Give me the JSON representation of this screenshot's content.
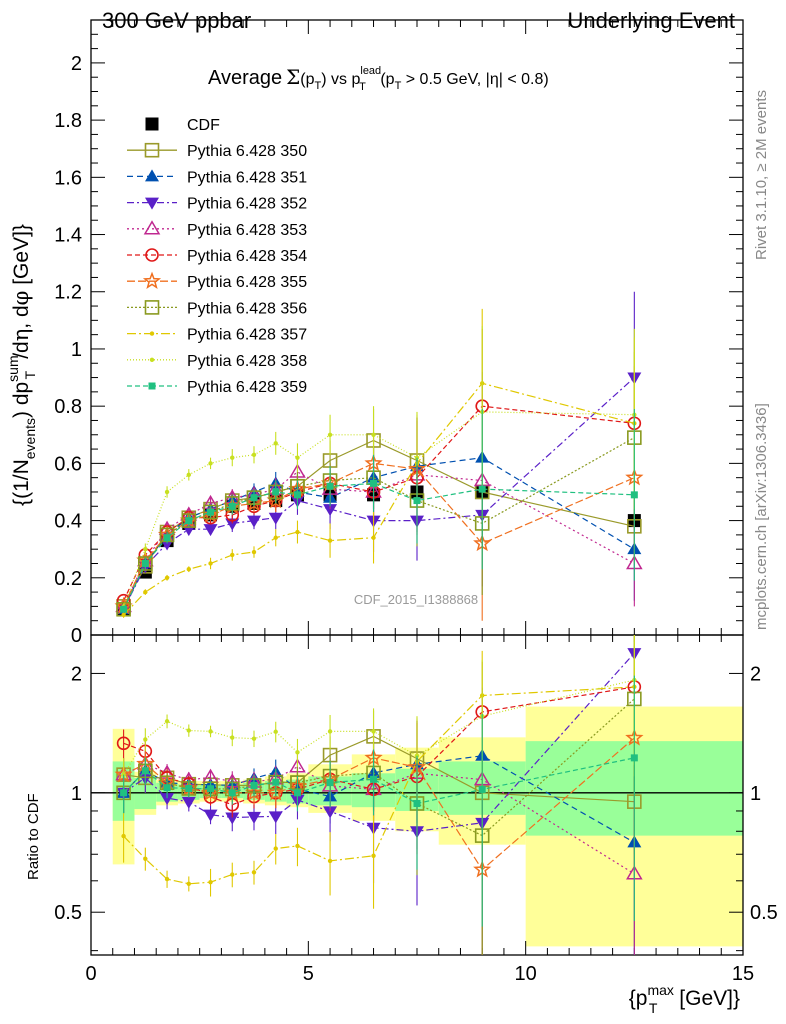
{
  "header": {
    "left": "300 GeV ppbar",
    "right": "Underlying Event"
  },
  "side_labels": {
    "rivet": "Rivet 3.1.10, ≥ 2M events",
    "mcplots": "mcplots.cern.ch [arXiv:1306.3436]"
  },
  "watermark": "CDF_2015_I1388868",
  "title": {
    "average": "Average",
    "sigma": "Σ",
    "p": "(p",
    "t_sub": "T",
    "close": ")",
    "vs": " vs p",
    "lead_sup": "lead",
    "lead_sub": "T",
    "cut": " (p",
    "cut_sub": "T",
    "cut_rest": " > 0.5 GeV, |η| < 0.8)"
  },
  "axes": {
    "ylabel_main": "{(1/N_events) dp_T^sum/dη, dφ [GeV]}",
    "ylabel_ratio": "Ratio to CDF",
    "xlabel": "{p_T^max [GeV]}"
  },
  "colors": {
    "CDF": "#000000",
    "350": "#9a9a2a",
    "351": "#0050b0",
    "352": "#5a20c8",
    "353": "#c02890",
    "354": "#e01818",
    "355": "#f07020",
    "356": "#8a9a20",
    "357": "#e0c800",
    "358": "#c8e020",
    "359": "#20c080",
    "band_inner": "#99ff99",
    "band_outer": "#ffff99"
  },
  "chart_data": {
    "type": "scatter",
    "x_axis": {
      "label": "p_T^max [GeV]",
      "range": [
        0,
        15
      ],
      "ticks": [
        0,
        5,
        10,
        15
      ]
    },
    "main_y_axis": {
      "range": [
        0,
        2.15
      ],
      "ticks": [
        0,
        0.2,
        0.4,
        0.6,
        0.8,
        1,
        1.2,
        1.4,
        1.6,
        1.8,
        2
      ]
    },
    "ratio_y_axis": {
      "scale": "log",
      "range": [
        0.39,
        2.5
      ],
      "ticks": [
        0.5,
        1,
        2
      ],
      "reference_line": 1
    },
    "bins": [
      0.75,
      1.25,
      1.75,
      2.25,
      2.75,
      3.25,
      3.75,
      4.25,
      4.75,
      5.5,
      6.5,
      7.5,
      9.0,
      12.5
    ],
    "bin_edges": [
      0.5,
      1,
      1.5,
      2,
      2.5,
      3,
      3.5,
      4,
      4.5,
      5,
      6,
      7,
      8,
      10,
      15
    ],
    "data_band": {
      "inner": [
        0.85,
        0.91,
        0.95,
        0.96,
        0.97,
        0.97,
        0.96,
        0.95,
        0.94,
        0.93,
        0.92,
        0.9,
        0.88,
        0.78
      ],
      "outer": [
        0.66,
        0.88,
        0.93,
        0.94,
        0.95,
        0.95,
        0.94,
        0.93,
        0.92,
        0.89,
        0.85,
        0.8,
        0.74,
        0.41
      ],
      "inner_hi": [
        1.2,
        1.09,
        1.06,
        1.05,
        1.05,
        1.05,
        1.06,
        1.07,
        1.08,
        1.1,
        1.12,
        1.15,
        1.2,
        1.35
      ],
      "outer_hi": [
        1.45,
        1.13,
        1.08,
        1.07,
        1.07,
        1.07,
        1.08,
        1.1,
        1.12,
        1.18,
        1.25,
        1.3,
        1.38,
        1.65
      ]
    },
    "series": [
      {
        "name": "CDF",
        "key": "CDF",
        "marker": "square-filled",
        "dash": "none",
        "values": [
          0.09,
          0.22,
          0.33,
          0.39,
          0.42,
          0.45,
          0.46,
          0.47,
          0.49,
          0.49,
          0.49,
          0.5,
          0.5,
          0.4
        ],
        "errors": [
          0.01,
          0.01,
          0.01,
          0.01,
          0.01,
          0.01,
          0.01,
          0.01,
          0.01,
          0.02,
          0.03,
          0.03,
          0.04,
          0.03
        ]
      },
      {
        "name": "Pythia 6.428 350",
        "key": "350",
        "marker": "square-open",
        "dash": "solid",
        "values": [
          0.1,
          0.24,
          0.36,
          0.41,
          0.44,
          0.47,
          0.48,
          0.5,
          0.52,
          0.61,
          0.68,
          0.61,
          0.5,
          0.38
        ],
        "errors": [
          0.01,
          0.02,
          0.02,
          0.02,
          0.02,
          0.03,
          0.03,
          0.04,
          0.05,
          0.07,
          0.11,
          0.16,
          0.2,
          0.1
        ]
      },
      {
        "name": "Pythia 6.428 351",
        "key": "351",
        "marker": "triangle-up",
        "dash": "6,4",
        "values": [
          0.09,
          0.25,
          0.35,
          0.41,
          0.44,
          0.47,
          0.5,
          0.53,
          0.5,
          0.48,
          0.55,
          0.59,
          0.62,
          0.3
        ],
        "errors": [
          0.01,
          0.02,
          0.02,
          0.02,
          0.02,
          0.03,
          0.03,
          0.04,
          0.05,
          0.07,
          0.11,
          0.17,
          0.3,
          0.18
        ]
      },
      {
        "name": "Pythia 6.428 352",
        "key": "352",
        "marker": "triangle-down",
        "dash": "7,3,2,3",
        "values": [
          0.09,
          0.24,
          0.32,
          0.37,
          0.37,
          0.39,
          0.4,
          0.41,
          0.47,
          0.44,
          0.4,
          0.4,
          0.42,
          0.9
        ],
        "errors": [
          0.01,
          0.02,
          0.02,
          0.02,
          0.02,
          0.03,
          0.03,
          0.04,
          0.05,
          0.07,
          0.11,
          0.14,
          0.25,
          0.3
        ]
      },
      {
        "name": "Pythia 6.428 353",
        "key": "353",
        "marker": "triangle-up-open",
        "dash": "2,3",
        "values": [
          0.1,
          0.26,
          0.37,
          0.42,
          0.46,
          0.48,
          0.49,
          0.51,
          0.57,
          0.51,
          0.5,
          0.56,
          0.54,
          0.25
        ],
        "errors": [
          0.01,
          0.02,
          0.02,
          0.02,
          0.02,
          0.03,
          0.03,
          0.04,
          0.05,
          0.07,
          0.11,
          0.2,
          0.3,
          0.15
        ]
      },
      {
        "name": "Pythia 6.428 354",
        "key": "354",
        "marker": "circle-open",
        "dash": "5,3",
        "values": [
          0.12,
          0.28,
          0.36,
          0.41,
          0.41,
          0.42,
          0.45,
          0.47,
          0.5,
          0.53,
          0.5,
          0.55,
          0.8,
          0.74
        ],
        "errors": [
          0.01,
          0.02,
          0.02,
          0.02,
          0.02,
          0.03,
          0.03,
          0.04,
          0.05,
          0.07,
          0.11,
          0.2,
          0.27,
          0.2
        ]
      },
      {
        "name": "Pythia 6.428 355",
        "key": "355",
        "marker": "star-open",
        "dash": "8,3",
        "values": [
          0.1,
          0.26,
          0.35,
          0.4,
          0.42,
          0.45,
          0.46,
          0.47,
          0.51,
          0.53,
          0.6,
          0.58,
          0.32,
          0.55
        ],
        "errors": [
          0.01,
          0.02,
          0.02,
          0.02,
          0.02,
          0.03,
          0.03,
          0.04,
          0.05,
          0.07,
          0.11,
          0.18,
          0.27,
          0.3
        ]
      },
      {
        "name": "Pythia 6.428 356",
        "key": "356",
        "marker": "square-open",
        "dash": "2,2",
        "values": [
          0.09,
          0.25,
          0.35,
          0.4,
          0.43,
          0.46,
          0.48,
          0.5,
          0.52,
          0.54,
          0.55,
          0.47,
          0.39,
          0.69
        ],
        "errors": [
          0.01,
          0.02,
          0.02,
          0.02,
          0.02,
          0.03,
          0.03,
          0.04,
          0.05,
          0.07,
          0.11,
          0.16,
          0.25,
          0.3
        ]
      },
      {
        "name": "Pythia 6.428 357",
        "key": "357",
        "marker": "dot-small",
        "dash": "9,3,2,3",
        "values": [
          0.07,
          0.15,
          0.2,
          0.23,
          0.25,
          0.28,
          0.29,
          0.34,
          0.36,
          0.33,
          0.34,
          0.6,
          0.88,
          0.74
        ],
        "errors": [
          0.01,
          0.01,
          0.01,
          0.01,
          0.02,
          0.02,
          0.02,
          0.03,
          0.04,
          0.06,
          0.09,
          0.16,
          0.26,
          0.3
        ]
      },
      {
        "name": "Pythia 6.428 358",
        "key": "358",
        "marker": "dot-small",
        "dash": "1,2",
        "values": [
          0.1,
          0.3,
          0.5,
          0.56,
          0.6,
          0.62,
          0.63,
          0.67,
          0.62,
          0.7,
          0.7,
          0.62,
          0.78,
          0.77
        ],
        "errors": [
          0.01,
          0.02,
          0.02,
          0.02,
          0.02,
          0.03,
          0.03,
          0.04,
          0.05,
          0.07,
          0.1,
          0.16,
          0.3,
          0.3
        ]
      },
      {
        "name": "Pythia 6.428 359",
        "key": "359",
        "marker": "square-small",
        "dash": "5,3",
        "values": [
          0.09,
          0.25,
          0.34,
          0.4,
          0.43,
          0.45,
          0.48,
          0.5,
          0.49,
          0.52,
          0.53,
          0.47,
          0.51,
          0.49
        ],
        "errors": [
          0.01,
          0.02,
          0.02,
          0.02,
          0.02,
          0.03,
          0.03,
          0.04,
          0.05,
          0.07,
          0.1,
          0.15,
          0.28,
          0.3
        ]
      }
    ]
  }
}
